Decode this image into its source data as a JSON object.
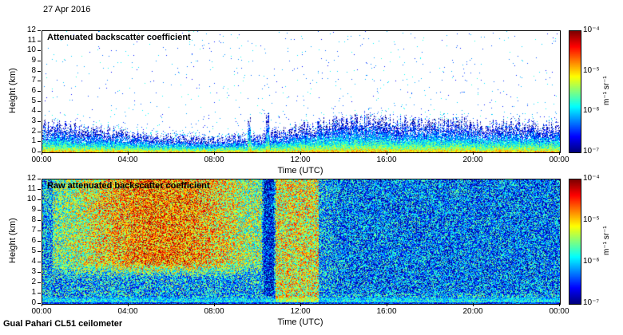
{
  "header": {
    "date": "27 Apr 2016"
  },
  "footer": {
    "label": "Gual Pahari CL51 ceilometer"
  },
  "colorbar": {
    "colormap": "jet",
    "tick_labels": [
      "10⁻⁴",
      "10⁻⁵",
      "10⁻⁶",
      "10⁻⁷"
    ],
    "tick_exponents": [
      -4,
      -5,
      -6,
      -7
    ],
    "unit_label": "m⁻¹ sr⁻¹",
    "value_exp_range": [
      -7,
      -4
    ]
  },
  "chart_data": [
    {
      "id": "attenuated-backscatter",
      "type": "heatmap",
      "title": "Attenuated backscatter coefficient",
      "xlabel": "Time (UTC)",
      "ylabel": "Height (km)",
      "x_ticks": [
        "00:00",
        "04:00",
        "08:00",
        "12:00",
        "16:00",
        "20:00",
        "00:00"
      ],
      "x_range_hours": [
        0,
        24
      ],
      "y_ticks": [
        0,
        1,
        2,
        3,
        4,
        5,
        6,
        7,
        8,
        9,
        10,
        11,
        12
      ],
      "ylim_km": [
        0,
        12
      ],
      "colormap": "jet",
      "no_data_color": "#ffffff",
      "value_exp_range": [
        -7,
        -4
      ],
      "surface_exp": -4.7,
      "top_exp": -6.9,
      "aerosol_layer_top_km": {
        "hours": [
          0,
          1,
          2,
          3,
          4,
          5,
          6,
          7,
          8,
          9,
          10,
          11,
          12,
          13,
          14,
          15,
          16,
          17,
          18,
          19,
          20,
          21,
          22,
          23,
          24
        ],
        "km": [
          2.6,
          2.4,
          2.2,
          2.0,
          1.8,
          1.6,
          1.5,
          1.4,
          1.3,
          1.4,
          1.6,
          2.0,
          2.4,
          2.8,
          3.0,
          3.1,
          3.0,
          2.9,
          2.9,
          2.8,
          2.8,
          2.7,
          2.7,
          2.6,
          2.6
        ]
      },
      "spikes": [
        {
          "hour": 9.6,
          "top_km": 3.2
        },
        {
          "hour": 10.45,
          "top_km": 3.6
        }
      ]
    },
    {
      "id": "raw-attenuated-backscatter",
      "type": "heatmap",
      "title": "Raw attenuated backscatter coefficient",
      "xlabel": "Time (UTC)",
      "ylabel": "Height (km)",
      "x_ticks": [
        "00:00",
        "04:00",
        "08:00",
        "12:00",
        "16:00",
        "20:00",
        "00:00"
      ],
      "x_range_hours": [
        0,
        24
      ],
      "y_ticks": [
        0,
        1,
        2,
        3,
        4,
        5,
        6,
        7,
        8,
        9,
        10,
        11,
        12
      ],
      "ylim_km": [
        0,
        12
      ],
      "colormap": "jet",
      "value_exp_range": [
        -7,
        -4
      ],
      "base_exp": -6.1,
      "jitter_exp": 1.7,
      "regions": [
        {
          "name": "morning-solar-noise",
          "t_hours": [
            0.5,
            10.2
          ],
          "h_km_above": 2.5,
          "center_hour": 5.5,
          "sigma_hours": 3.5,
          "peak_exp": -4.5,
          "weight": 0.85
        },
        {
          "name": "midday-column",
          "t_hours": [
            10.8,
            12.8
          ],
          "h_km": [
            0,
            12
          ],
          "peak_exp": -4.9,
          "weight": 0.75
        },
        {
          "name": "dark-gap",
          "t_hours": [
            10.25,
            10.75
          ],
          "h_km": [
            0.8,
            12
          ],
          "peak_exp": -6.7,
          "weight": 0.9
        },
        {
          "name": "afternoon-clear",
          "t_hours": [
            13,
            24
          ],
          "h_km": [
            1,
            12
          ],
          "peak_exp": -6.35,
          "weight": 0.7
        },
        {
          "name": "surface-layer",
          "t_hours": [
            0,
            24
          ],
          "h_km": [
            0,
            0.6
          ],
          "peak_exp": -5.6,
          "weight": 0.8
        },
        {
          "name": "ground-line",
          "t_hours": [
            0,
            24
          ],
          "h_km": [
            0,
            0.15
          ],
          "peak_exp": -6.6,
          "weight": 0.85
        }
      ]
    }
  ]
}
